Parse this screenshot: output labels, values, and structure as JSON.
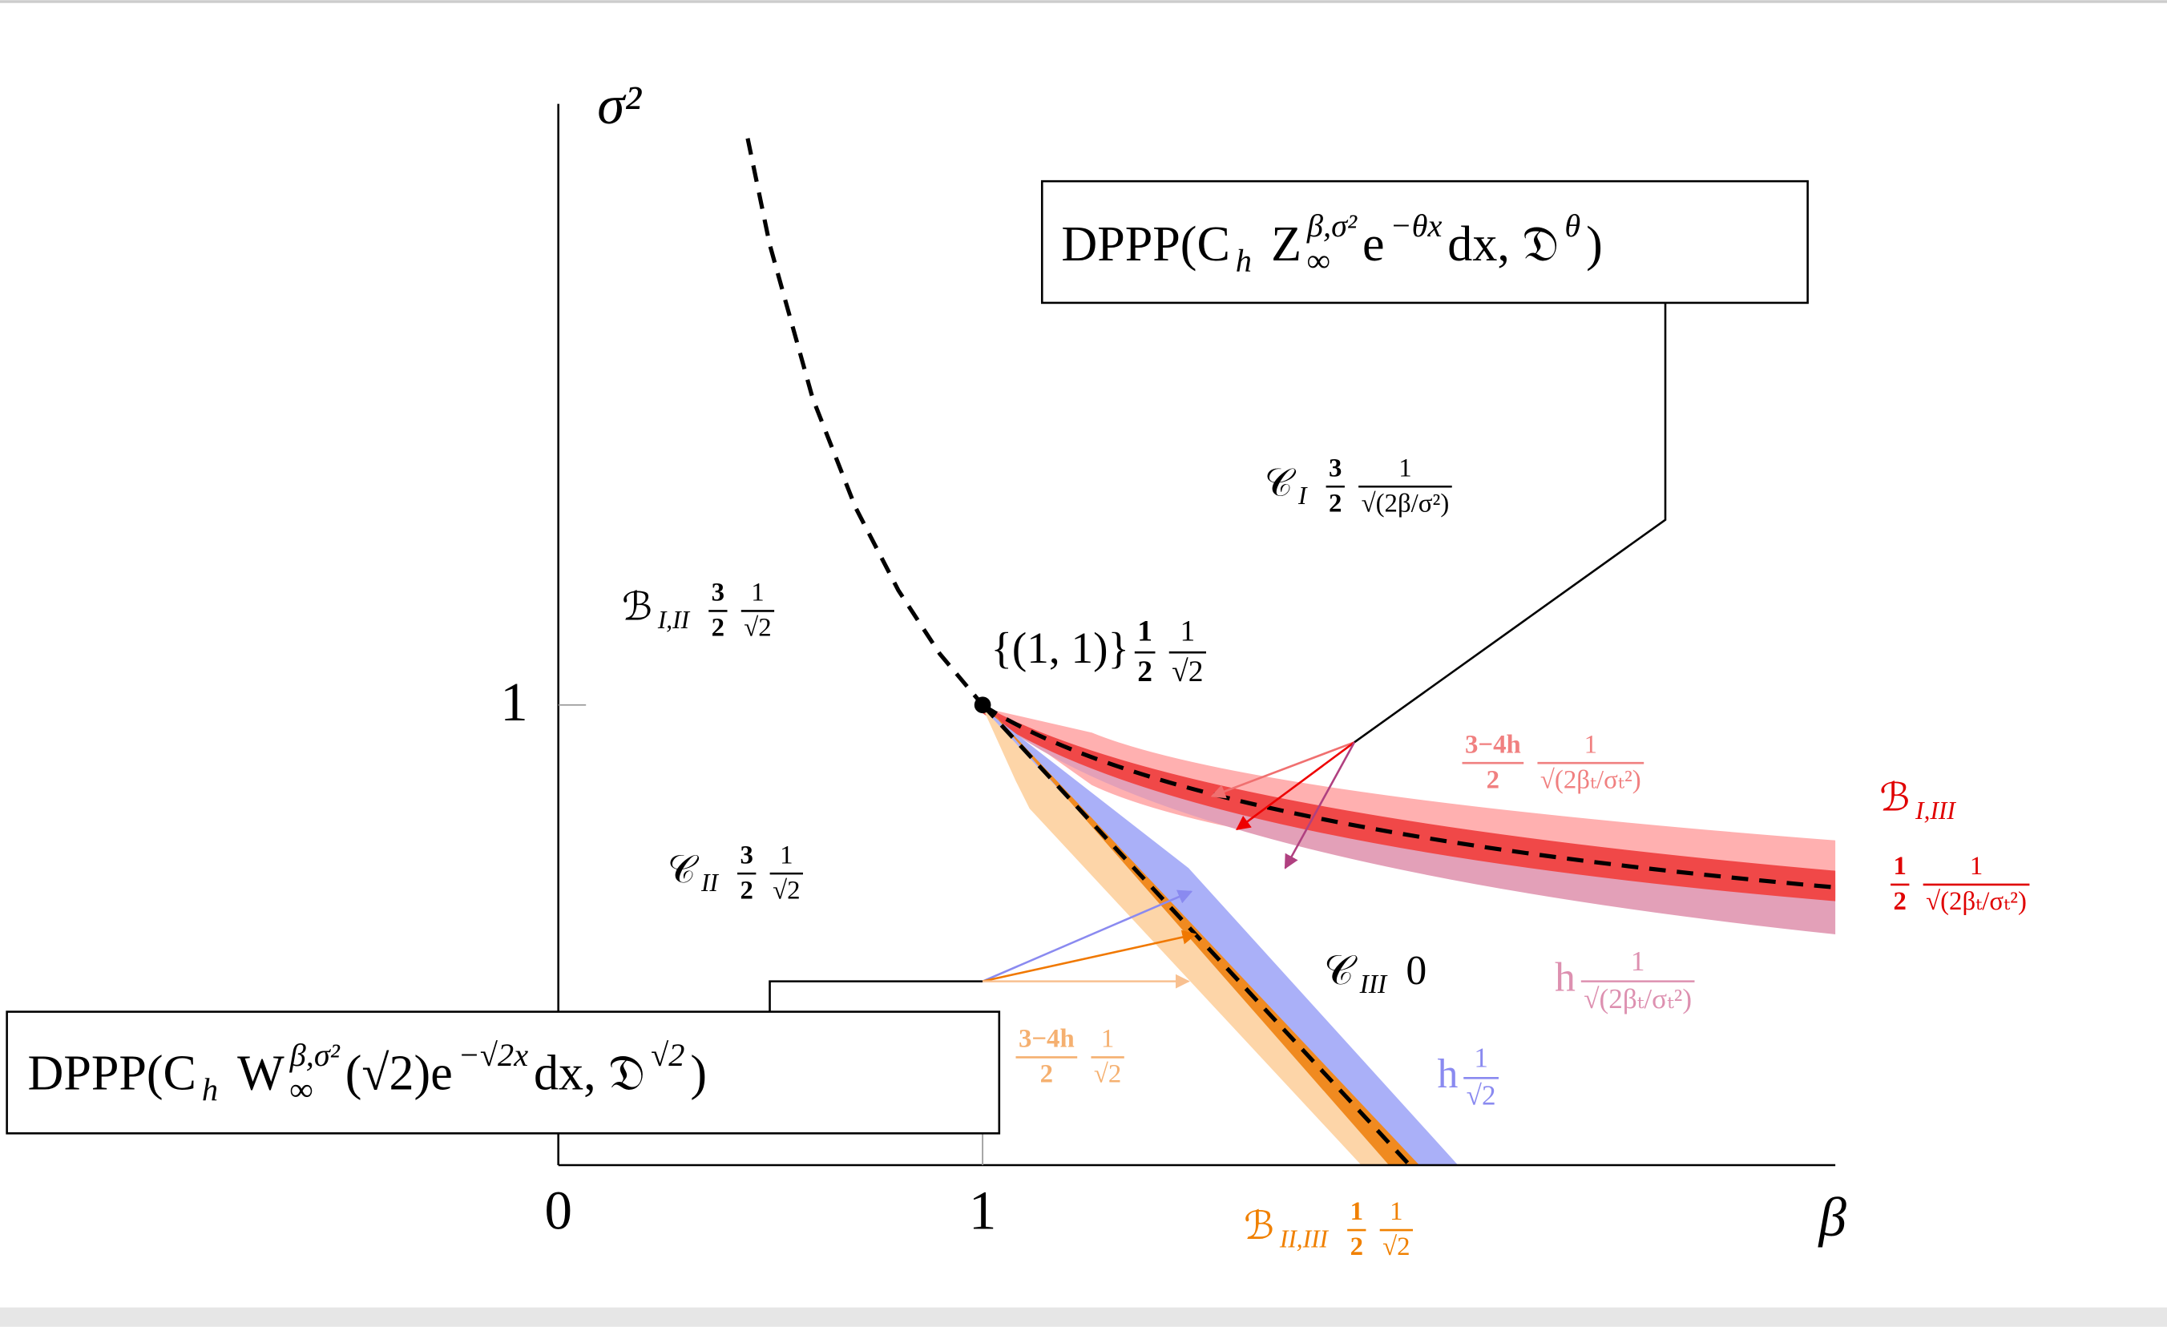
{
  "axes": {
    "x_label": "β",
    "y_label": "σ²",
    "x_ticks": [
      "0",
      "1"
    ],
    "y_ticks": [
      "1"
    ]
  },
  "boxes": [
    {
      "parts": [
        {
          "text": "DPPP(C"
        },
        {
          "sub": "h"
        },
        {
          "text": "Z"
        },
        {
          "sub": "∞"
        },
        {
          "sup": "β,σ²"
        },
        {
          "text": " e"
        },
        {
          "sup": "−θx"
        },
        {
          "text": "dx, 𝔇"
        },
        {
          "sup": "θ"
        },
        {
          "text": ")"
        }
      ]
    },
    {
      "parts": [
        {
          "text": "DPPP(C"
        },
        {
          "sub": "h"
        },
        {
          "text": "W"
        },
        {
          "sub": "∞"
        },
        {
          "sup": "β,σ²"
        },
        {
          "text": "(√2)e"
        },
        {
          "sup": "−√2x"
        },
        {
          "text": "dx, 𝔇"
        },
        {
          "sup": "√2"
        },
        {
          "text": ")"
        }
      ]
    }
  ],
  "labels": [
    {
      "parts": [
        {
          "text": "𝒞"
        },
        {
          "sub": "I"
        },
        {
          "num": "3",
          "den": "2"
        },
        {
          "num": "1",
          "den": "√(2β/σ²)"
        }
      ]
    },
    {
      "parts": [
        {
          "text": "ℬ"
        },
        {
          "sub": "I,II"
        },
        {
          "num": "3",
          "den": "2"
        },
        {
          "num": "1",
          "den": "√2"
        }
      ]
    },
    {
      "parts": [
        {
          "text": "{(1, 1)}"
        },
        {
          "num": "1",
          "den": "2"
        },
        {
          "num": "1",
          "den": "√2"
        }
      ]
    },
    {
      "parts": [
        {
          "text": "𝒞"
        },
        {
          "sub": "II"
        },
        {
          "num": "3",
          "den": "2"
        },
        {
          "num": "1",
          "den": "√2"
        }
      ]
    },
    {
      "parts": [
        {
          "text": "𝒞"
        },
        {
          "sub": "III"
        },
        {
          "text": "0"
        }
      ]
    },
    {
      "parts": [
        {
          "num": "3−4h",
          "den": "2"
        },
        {
          "num": "1",
          "den": "√(2βₜ/σₜ²)"
        }
      ]
    },
    {
      "parts": [
        {
          "text": "ℬ"
        },
        {
          "sub": "I,III"
        }
      ]
    },
    {
      "parts": [
        {
          "num": "1",
          "den": "2"
        },
        {
          "num": "1",
          "den": "√(2βₜ/σₜ²)"
        }
      ]
    },
    {
      "parts": [
        {
          "text": "h"
        },
        {
          "num": "1",
          "den": "√(2βₜ/σₜ²)"
        }
      ]
    },
    {
      "parts": [
        {
          "num": "3−4h",
          "den": "2"
        },
        {
          "num": "1",
          "den": "√2"
        }
      ]
    },
    {
      "parts": [
        {
          "text": "h"
        },
        {
          "num": "1",
          "den": "√2"
        }
      ]
    },
    {
      "parts": [
        {
          "text": "ℬ"
        },
        {
          "sub": "II,III"
        },
        {
          "num": "1",
          "den": "2"
        },
        {
          "num": "1",
          "den": "√2"
        }
      ]
    }
  ]
}
